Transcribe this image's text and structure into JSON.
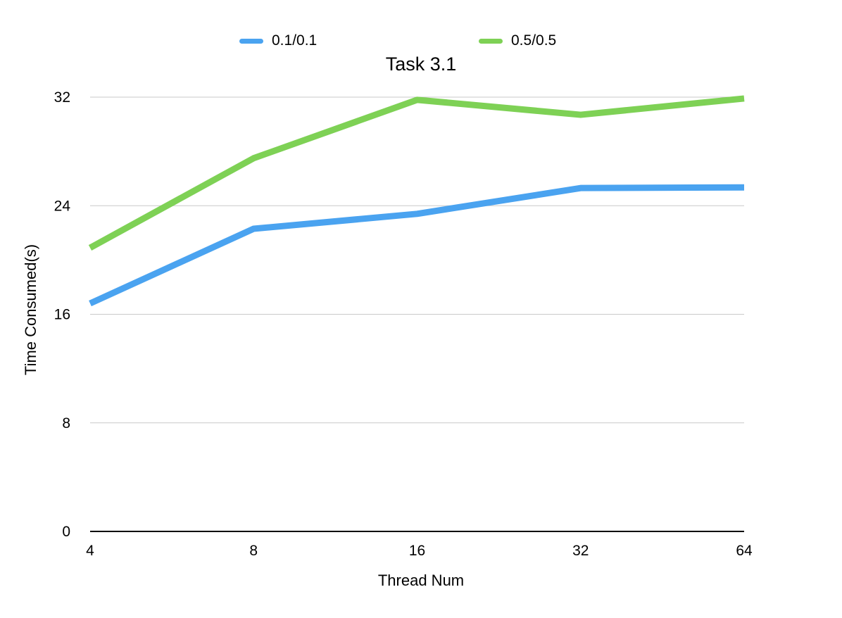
{
  "chart_data": {
    "type": "line",
    "title": "Task 3.1",
    "xlabel": "Thread Num",
    "ylabel": "Time Consumed(s)",
    "categories": [
      "4",
      "8",
      "16",
      "32",
      "64"
    ],
    "series": [
      {
        "name": "0.1/0.1",
        "color": "#4aa3f0",
        "values": [
          16.8,
          22.3,
          23.4,
          25.3,
          25.35
        ]
      },
      {
        "name": "0.5/0.5",
        "color": "#7ed155",
        "values": [
          20.9,
          27.5,
          31.8,
          30.7,
          31.9
        ]
      }
    ],
    "ylim": [
      0,
      32
    ],
    "yticks": [
      "0",
      "8",
      "16",
      "24",
      "32"
    ],
    "grid": true,
    "legend_position": "top"
  }
}
